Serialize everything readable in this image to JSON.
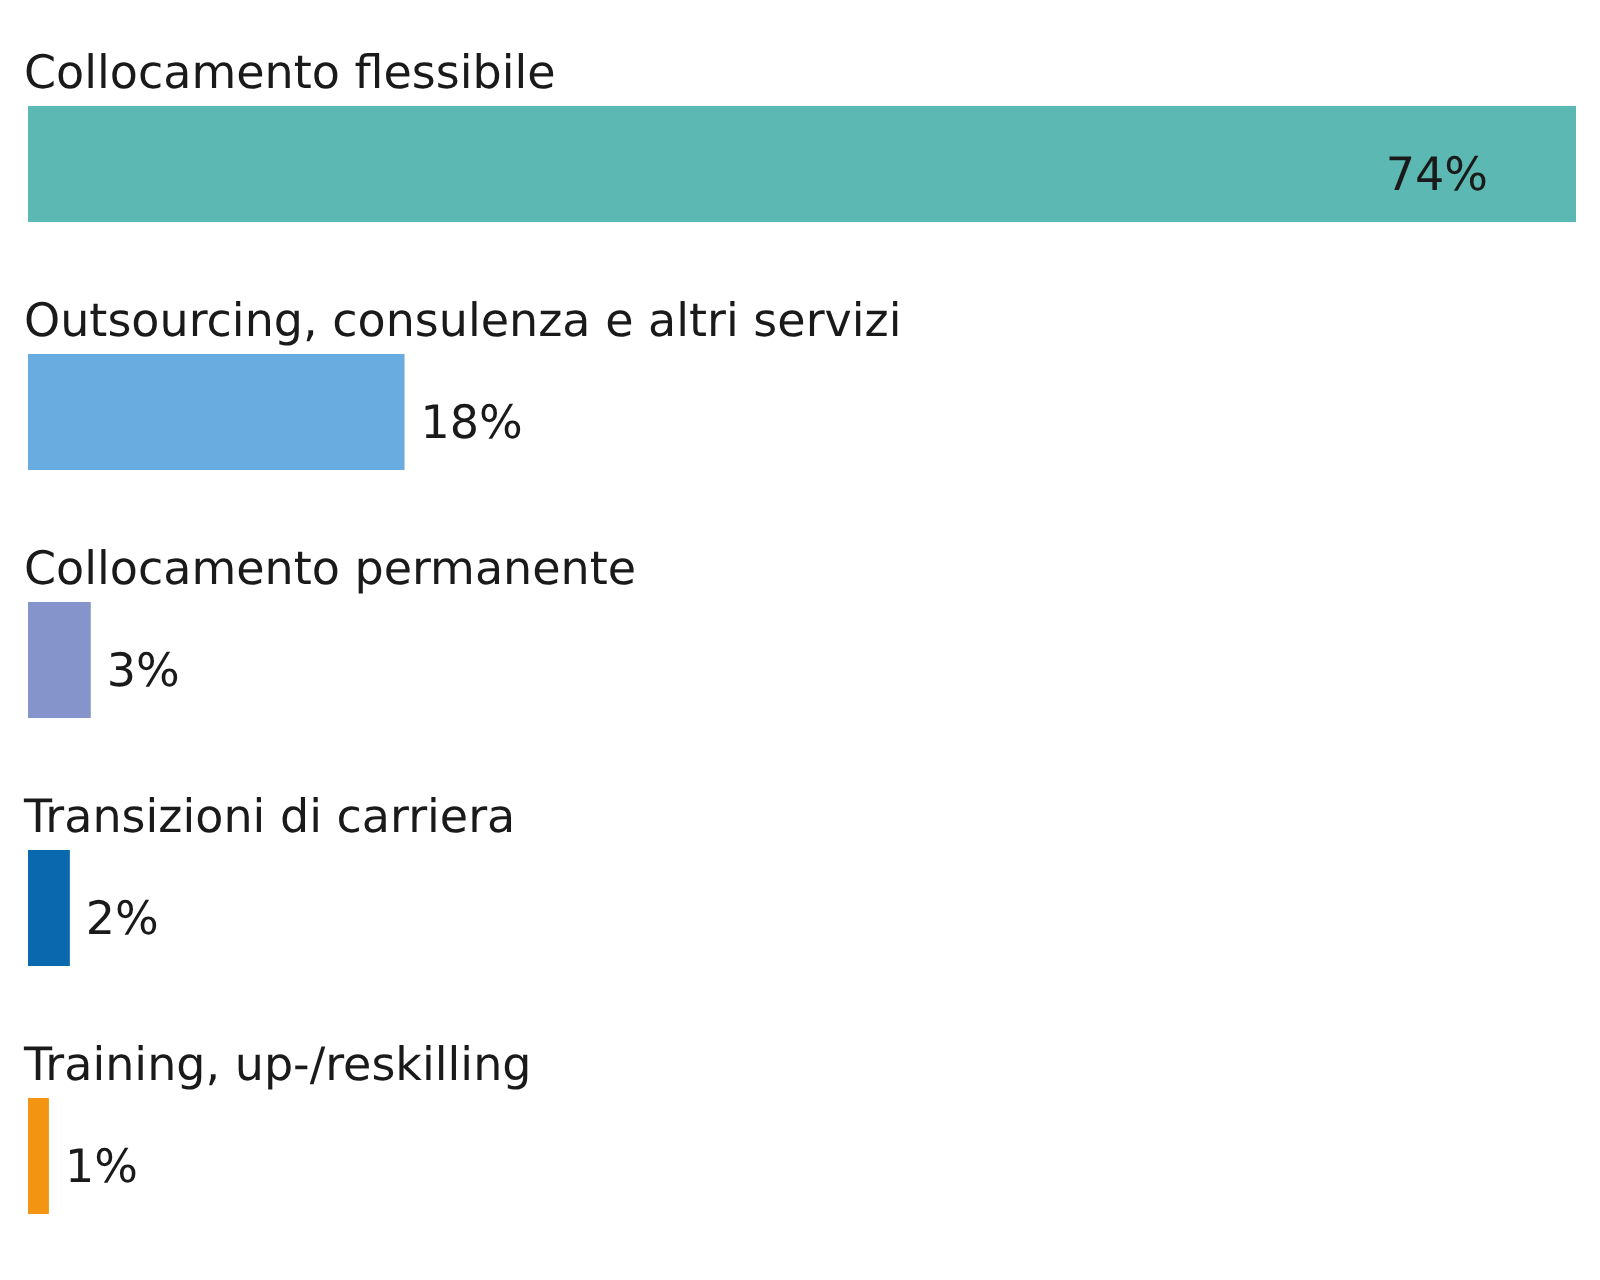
{
  "chart_data": {
    "type": "bar",
    "orientation": "horizontal",
    "categories": [
      "Collocamento flessibile",
      "Outsourcing, consulenza e altri servizi",
      "Collocamento permanente",
      "Transizioni di carriera",
      "Training, up-/reskilling"
    ],
    "values": [
      74,
      18,
      3,
      2,
      1
    ],
    "colors": [
      "#5bb8b2",
      "#69ade0",
      "#8594cb",
      "#0a68ae",
      "#f39512"
    ],
    "value_labels": [
      "74%",
      "18%",
      "3%",
      "2%",
      "1%"
    ],
    "tick_labels": "y"
  }
}
